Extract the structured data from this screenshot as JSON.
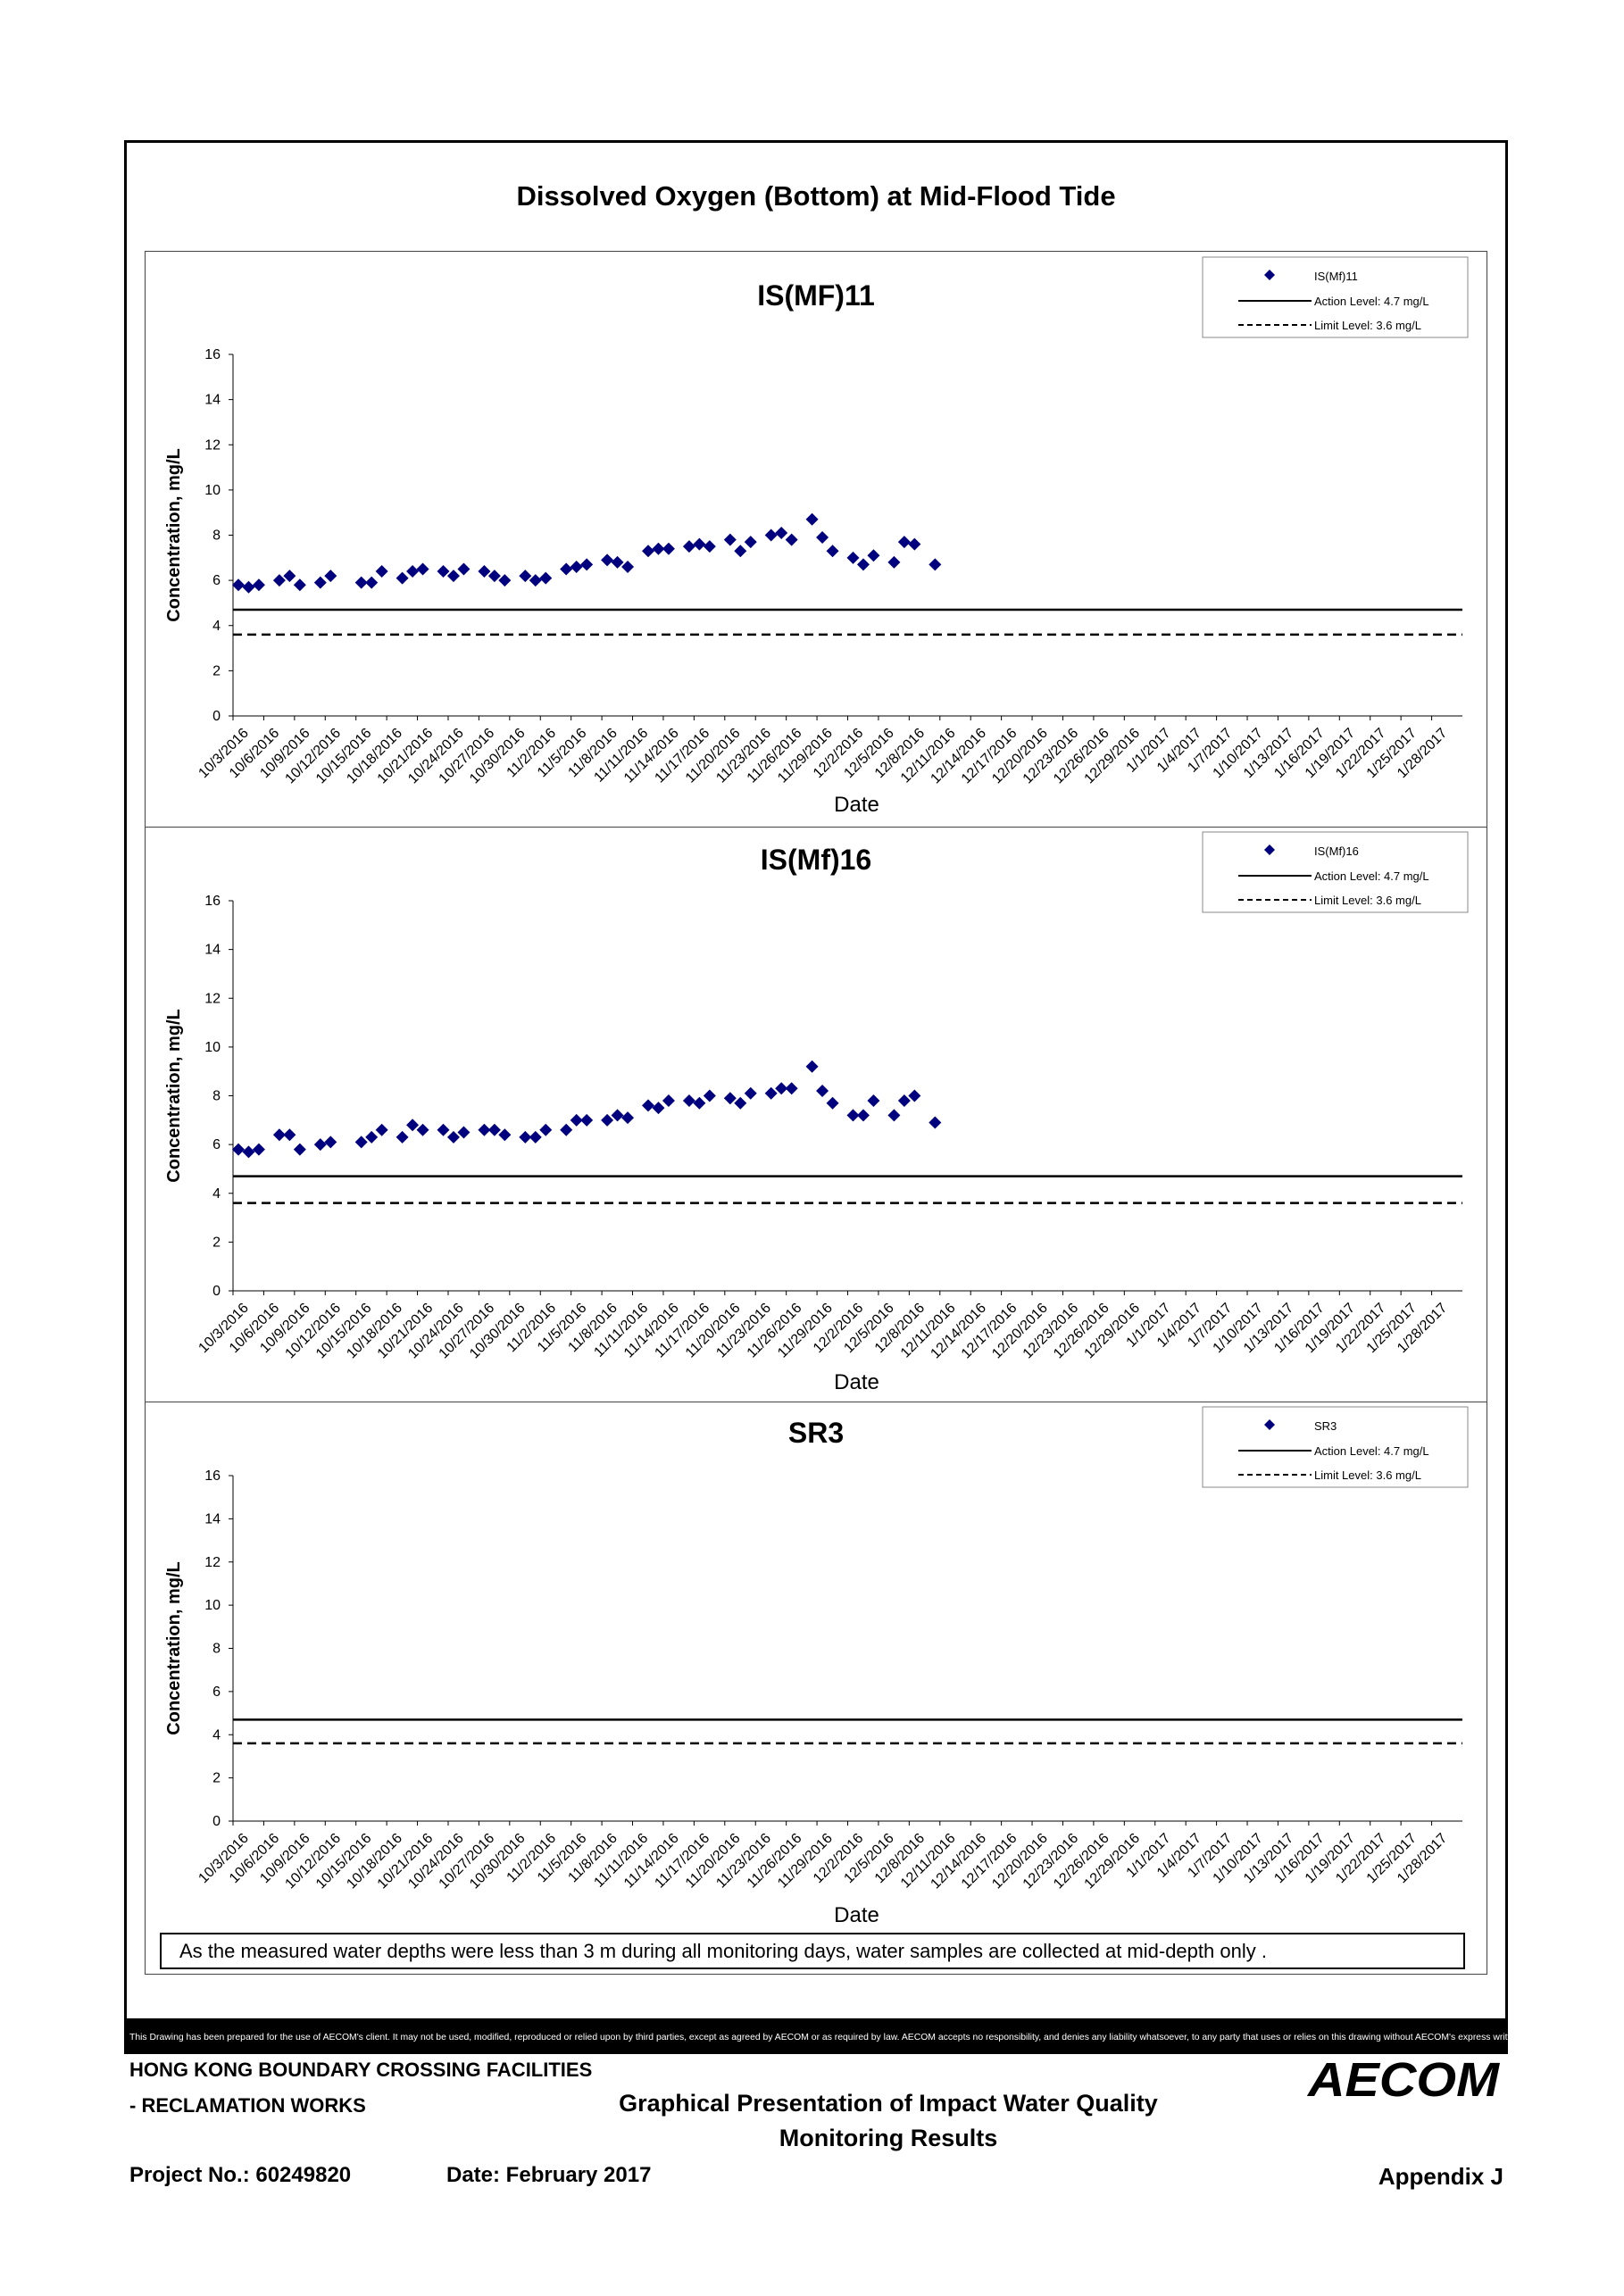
{
  "page": {
    "title": "Dissolved Oxygen (Bottom) at Mid-Flood Tide",
    "note": "As the measured water depths were less than 3 m during all monitoring days, water samples are collected  at mid-depth only .",
    "disclaimer": "This Drawing has been prepared for the use of AECOM's client. It may not be used, modified, reproduced or relied upon by third parties, except as agreed by AECOM or as required by law. AECOM accepts no responsibility, and denies any liability whatsoever, to any party that uses or relies on this drawing without AECOM's express written consent.",
    "footer": {
      "project_line1": "HONG KONG BOUNDARY CROSSING FACILITIES",
      "project_line2": "- RECLAMATION WORKS",
      "drawing_title_line1": "Graphical Presentation of Impact Water Quality",
      "drawing_title_line2": "Monitoring Results",
      "project_no": "Project No.: 60249820",
      "date": "Date: February 2017",
      "appendix": "Appendix J",
      "logo": "AECOM"
    },
    "colors": {
      "marker": "#00007f",
      "line": "#000000"
    }
  },
  "chart_data": [
    {
      "type": "scatter",
      "title": "IS(MF)11",
      "xlabel": "Date",
      "ylabel": "Concentration, mg/L",
      "ylim": [
        0,
        16
      ],
      "yticks": [
        0,
        2,
        4,
        6,
        8,
        10,
        12,
        14,
        16
      ],
      "x_axis_start": "10/3/2016",
      "xticks": [
        "10/3/2016",
        "10/6/2016",
        "10/9/2016",
        "10/12/2016",
        "10/15/2016",
        "10/18/2016",
        "10/21/2016",
        "10/24/2016",
        "10/27/2016",
        "10/30/2016",
        "11/2/2016",
        "11/5/2016",
        "11/8/2016",
        "11/11/2016",
        "11/14/2016",
        "11/17/2016",
        "11/20/2016",
        "11/23/2016",
        "11/26/2016",
        "11/29/2016",
        "12/2/2016",
        "12/5/2016",
        "12/8/2016",
        "12/11/2016",
        "12/14/2016",
        "12/17/2016",
        "12/20/2016",
        "12/23/2016",
        "12/26/2016",
        "12/29/2016",
        "1/1/2017",
        "1/4/2017",
        "1/7/2017",
        "1/10/2017",
        "1/13/2017",
        "1/16/2017",
        "1/19/2017",
        "1/22/2017",
        "1/25/2017",
        "1/28/2017"
      ],
      "legend_position": "top-right",
      "grid": false,
      "action_level": 4.7,
      "limit_level": 3.6,
      "legend": [
        "IS(Mf)11",
        "Action Level: 4.7 mg/L",
        "Limit Level: 3.6 mg/L"
      ],
      "series": [
        {
          "name": "IS(Mf)11",
          "points": [
            [
              "10/3/2016",
              5.8
            ],
            [
              "10/4/2016",
              5.7
            ],
            [
              "10/5/2016",
              5.8
            ],
            [
              "10/7/2016",
              6.0
            ],
            [
              "10/8/2016",
              6.2
            ],
            [
              "10/9/2016",
              5.8
            ],
            [
              "10/11/2016",
              5.9
            ],
            [
              "10/12/2016",
              6.2
            ],
            [
              "10/15/2016",
              5.9
            ],
            [
              "10/16/2016",
              5.9
            ],
            [
              "10/17/2016",
              6.4
            ],
            [
              "10/19/2016",
              6.1
            ],
            [
              "10/20/2016",
              6.4
            ],
            [
              "10/21/2016",
              6.5
            ],
            [
              "10/23/2016",
              6.4
            ],
            [
              "10/24/2016",
              6.2
            ],
            [
              "10/25/2016",
              6.5
            ],
            [
              "10/27/2016",
              6.4
            ],
            [
              "10/28/2016",
              6.2
            ],
            [
              "10/29/2016",
              6.0
            ],
            [
              "10/31/2016",
              6.2
            ],
            [
              "11/1/2016",
              6.0
            ],
            [
              "11/2/2016",
              6.1
            ],
            [
              "11/4/2016",
              6.5
            ],
            [
              "11/5/2016",
              6.6
            ],
            [
              "11/6/2016",
              6.7
            ],
            [
              "11/8/2016",
              6.9
            ],
            [
              "11/9/2016",
              6.8
            ],
            [
              "11/10/2016",
              6.6
            ],
            [
              "11/12/2016",
              7.3
            ],
            [
              "11/13/2016",
              7.4
            ],
            [
              "11/14/2016",
              7.4
            ],
            [
              "11/16/2016",
              7.5
            ],
            [
              "11/17/2016",
              7.6
            ],
            [
              "11/18/2016",
              7.5
            ],
            [
              "11/20/2016",
              7.8
            ],
            [
              "11/21/2016",
              7.3
            ],
            [
              "11/22/2016",
              7.7
            ],
            [
              "11/24/2016",
              8.0
            ],
            [
              "11/25/2016",
              8.1
            ],
            [
              "11/26/2016",
              7.8
            ],
            [
              "11/28/2016",
              8.7
            ],
            [
              "11/29/2016",
              7.9
            ],
            [
              "11/30/2016",
              7.3
            ],
            [
              "12/2/2016",
              7.0
            ],
            [
              "12/3/2016",
              6.7
            ],
            [
              "12/4/2016",
              7.1
            ],
            [
              "12/6/2016",
              6.8
            ],
            [
              "12/7/2016",
              7.7
            ],
            [
              "12/8/2016",
              7.6
            ],
            [
              "12/10/2016",
              6.7
            ]
          ]
        }
      ]
    },
    {
      "type": "scatter",
      "title": "IS(Mf)16",
      "xlabel": "Date",
      "ylabel": "Concentration, mg/L",
      "ylim": [
        0,
        16
      ],
      "yticks": [
        0,
        2,
        4,
        6,
        8,
        10,
        12,
        14,
        16
      ],
      "x_axis_start": "10/3/2016",
      "xticks": [
        "10/3/2016",
        "10/6/2016",
        "10/9/2016",
        "10/12/2016",
        "10/15/2016",
        "10/18/2016",
        "10/21/2016",
        "10/24/2016",
        "10/27/2016",
        "10/30/2016",
        "11/2/2016",
        "11/5/2016",
        "11/8/2016",
        "11/11/2016",
        "11/14/2016",
        "11/17/2016",
        "11/20/2016",
        "11/23/2016",
        "11/26/2016",
        "11/29/2016",
        "12/2/2016",
        "12/5/2016",
        "12/8/2016",
        "12/11/2016",
        "12/14/2016",
        "12/17/2016",
        "12/20/2016",
        "12/23/2016",
        "12/26/2016",
        "12/29/2016",
        "1/1/2017",
        "1/4/2017",
        "1/7/2017",
        "1/10/2017",
        "1/13/2017",
        "1/16/2017",
        "1/19/2017",
        "1/22/2017",
        "1/25/2017",
        "1/28/2017"
      ],
      "legend_position": "top-right",
      "grid": false,
      "action_level": 4.7,
      "limit_level": 3.6,
      "legend": [
        "IS(Mf)16",
        "Action Level: 4.7 mg/L",
        "Limit Level: 3.6 mg/L"
      ],
      "series": [
        {
          "name": "IS(Mf)16",
          "points": [
            [
              "10/3/2016",
              5.8
            ],
            [
              "10/4/2016",
              5.7
            ],
            [
              "10/5/2016",
              5.8
            ],
            [
              "10/7/2016",
              6.4
            ],
            [
              "10/8/2016",
              6.4
            ],
            [
              "10/9/2016",
              5.8
            ],
            [
              "10/11/2016",
              6.0
            ],
            [
              "10/12/2016",
              6.1
            ],
            [
              "10/15/2016",
              6.1
            ],
            [
              "10/16/2016",
              6.3
            ],
            [
              "10/17/2016",
              6.6
            ],
            [
              "10/19/2016",
              6.3
            ],
            [
              "10/20/2016",
              6.8
            ],
            [
              "10/21/2016",
              6.6
            ],
            [
              "10/23/2016",
              6.6
            ],
            [
              "10/24/2016",
              6.3
            ],
            [
              "10/25/2016",
              6.5
            ],
            [
              "10/27/2016",
              6.6
            ],
            [
              "10/28/2016",
              6.6
            ],
            [
              "10/29/2016",
              6.4
            ],
            [
              "10/31/2016",
              6.3
            ],
            [
              "11/1/2016",
              6.3
            ],
            [
              "11/2/2016",
              6.6
            ],
            [
              "11/4/2016",
              6.6
            ],
            [
              "11/5/2016",
              7.0
            ],
            [
              "11/6/2016",
              7.0
            ],
            [
              "11/8/2016",
              7.0
            ],
            [
              "11/9/2016",
              7.2
            ],
            [
              "11/10/2016",
              7.1
            ],
            [
              "11/12/2016",
              7.6
            ],
            [
              "11/13/2016",
              7.5
            ],
            [
              "11/14/2016",
              7.8
            ],
            [
              "11/16/2016",
              7.8
            ],
            [
              "11/17/2016",
              7.7
            ],
            [
              "11/18/2016",
              8.0
            ],
            [
              "11/20/2016",
              7.9
            ],
            [
              "11/21/2016",
              7.7
            ],
            [
              "11/22/2016",
              8.1
            ],
            [
              "11/24/2016",
              8.1
            ],
            [
              "11/25/2016",
              8.3
            ],
            [
              "11/26/2016",
              8.3
            ],
            [
              "11/28/2016",
              9.2
            ],
            [
              "11/29/2016",
              8.2
            ],
            [
              "11/30/2016",
              7.7
            ],
            [
              "12/2/2016",
              7.2
            ],
            [
              "12/3/2016",
              7.2
            ],
            [
              "12/4/2016",
              7.8
            ],
            [
              "12/6/2016",
              7.2
            ],
            [
              "12/7/2016",
              7.8
            ],
            [
              "12/8/2016",
              8.0
            ],
            [
              "12/10/2016",
              6.9
            ]
          ]
        }
      ]
    },
    {
      "type": "scatter",
      "title": "SR3",
      "xlabel": "Date",
      "ylabel": "Concentration, mg/L",
      "ylim": [
        0,
        16
      ],
      "yticks": [
        0,
        2,
        4,
        6,
        8,
        10,
        12,
        14,
        16
      ],
      "x_axis_start": "10/3/2016",
      "xticks": [
        "10/3/2016",
        "10/6/2016",
        "10/9/2016",
        "10/12/2016",
        "10/15/2016",
        "10/18/2016",
        "10/21/2016",
        "10/24/2016",
        "10/27/2016",
        "10/30/2016",
        "11/2/2016",
        "11/5/2016",
        "11/8/2016",
        "11/11/2016",
        "11/14/2016",
        "11/17/2016",
        "11/20/2016",
        "11/23/2016",
        "11/26/2016",
        "11/29/2016",
        "12/2/2016",
        "12/5/2016",
        "12/8/2016",
        "12/11/2016",
        "12/14/2016",
        "12/17/2016",
        "12/20/2016",
        "12/23/2016",
        "12/26/2016",
        "12/29/2016",
        "1/1/2017",
        "1/4/2017",
        "1/7/2017",
        "1/10/2017",
        "1/13/2017",
        "1/16/2017",
        "1/19/2017",
        "1/22/2017",
        "1/25/2017",
        "1/28/2017"
      ],
      "legend_position": "top-right",
      "grid": false,
      "action_level": 4.7,
      "limit_level": 3.6,
      "legend": [
        "SR3",
        "Action Level: 4.7 mg/L",
        "Limit Level: 3.6 mg/L"
      ],
      "series": [
        {
          "name": "SR3",
          "points": []
        }
      ]
    }
  ]
}
